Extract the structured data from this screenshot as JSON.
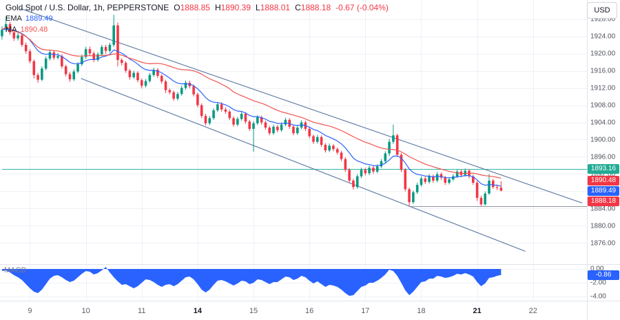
{
  "header": {
    "currency_label": "USD"
  },
  "legend": {
    "title": "Gold Spot / U.S. Dollar, 1h, PEPPERSTONE",
    "ohlc": [
      {
        "label": "O",
        "value": "1888.85"
      },
      {
        "label": "H",
        "value": "1890.39"
      },
      {
        "label": "L",
        "value": "1888.01"
      },
      {
        "label": "C",
        "value": "1888.18"
      }
    ],
    "change": "-0.67 (-0.04%)",
    "indicators": [
      {
        "label": "EMA",
        "value": "1889.49"
      },
      {
        "label": "MA",
        "value": "1890.48"
      }
    ]
  },
  "chart_data": {
    "type": "candlestick",
    "title": "Gold Spot / U.S. Dollar, 1h, PEPPERSTONE",
    "last": {
      "open": 1888.85,
      "high": 1890.39,
      "low": 1888.01,
      "close": 1888.18,
      "change": -0.67,
      "change_pct": -0.04
    },
    "right_margin_bars": 21,
    "price_axis": {
      "min": 1871.6,
      "max": 1932.4,
      "ticks": [
        1876,
        1880,
        1884,
        1888,
        1892,
        1896,
        1900,
        1904,
        1908,
        1912,
        1916,
        1920,
        1924,
        1928
      ]
    },
    "time_axis": {
      "labels": [
        {
          "text": "9",
          "bar": 7,
          "bold": false
        },
        {
          "text": "10",
          "bar": 21,
          "bold": false
        },
        {
          "text": "11",
          "bar": 35,
          "bold": false
        },
        {
          "text": "14",
          "bar": 49,
          "bold": true
        },
        {
          "text": "15",
          "bar": 63,
          "bold": false
        },
        {
          "text": "16",
          "bar": 77,
          "bold": false
        },
        {
          "text": "17",
          "bar": 91,
          "bold": false
        },
        {
          "text": "18",
          "bar": 105,
          "bold": false
        },
        {
          "text": "21",
          "bar": 119,
          "bold": true
        },
        {
          "text": "22",
          "bar": 133,
          "bold": false
        }
      ]
    },
    "candles": [
      [
        1924.0,
        1926.3,
        1923.2,
        1925.5
      ],
      [
        1925.5,
        1928.6,
        1925.0,
        1926.8
      ],
      [
        1926.8,
        1927.3,
        1924.3,
        1924.9
      ],
      [
        1924.9,
        1925.4,
        1922.9,
        1923.5
      ],
      [
        1923.5,
        1924.9,
        1923.0,
        1924.2
      ],
      [
        1924.2,
        1924.6,
        1921.5,
        1922.0
      ],
      [
        1922.0,
        1922.5,
        1919.9,
        1920.5
      ],
      [
        1920.5,
        1921.0,
        1917.7,
        1918.2
      ],
      [
        1918.2,
        1918.6,
        1914.2,
        1915.0
      ],
      [
        1915.0,
        1915.5,
        1913.2,
        1913.9
      ],
      [
        1913.9,
        1917.0,
        1913.6,
        1916.5
      ],
      [
        1916.5,
        1919.3,
        1916.1,
        1918.8
      ],
      [
        1918.8,
        1920.9,
        1918.4,
        1920.3
      ],
      [
        1920.3,
        1920.8,
        1918.5,
        1919.0
      ],
      [
        1919.0,
        1920.1,
        1918.6,
        1919.4
      ],
      [
        1919.4,
        1919.8,
        1916.5,
        1917.0
      ],
      [
        1917.0,
        1917.4,
        1914.7,
        1915.2
      ],
      [
        1915.2,
        1915.7,
        1913.4,
        1914.0
      ],
      [
        1914.0,
        1916.3,
        1913.6,
        1915.8
      ],
      [
        1915.8,
        1918.0,
        1915.4,
        1917.5
      ],
      [
        1917.5,
        1919.7,
        1917.1,
        1919.2
      ],
      [
        1919.2,
        1921.5,
        1918.8,
        1921.0
      ],
      [
        1921.0,
        1921.6,
        1919.5,
        1920.0
      ],
      [
        1920.0,
        1920.5,
        1918.0,
        1918.5
      ],
      [
        1918.5,
        1920.3,
        1918.1,
        1919.8
      ],
      [
        1919.8,
        1922.0,
        1919.4,
        1921.5
      ],
      [
        1921.5,
        1922.0,
        1919.9,
        1920.6
      ],
      [
        1920.6,
        1922.5,
        1920.2,
        1922.0
      ],
      [
        1922.0,
        1929.0,
        1921.5,
        1926.5
      ],
      [
        1926.5,
        1927.2,
        1917.0,
        1918.5
      ],
      [
        1918.5,
        1918.9,
        1917.2,
        1917.8
      ],
      [
        1917.8,
        1918.2,
        1915.5,
        1916.0
      ],
      [
        1916.0,
        1916.4,
        1913.9,
        1914.5
      ],
      [
        1914.5,
        1916.0,
        1914.1,
        1915.5
      ],
      [
        1915.5,
        1915.9,
        1913.3,
        1913.8
      ],
      [
        1913.8,
        1914.2,
        1911.9,
        1912.5
      ],
      [
        1912.5,
        1914.1,
        1912.1,
        1913.6
      ],
      [
        1913.6,
        1915.5,
        1913.2,
        1915.0
      ],
      [
        1915.0,
        1916.7,
        1914.6,
        1916.2
      ],
      [
        1916.2,
        1916.6,
        1914.3,
        1914.8
      ],
      [
        1914.8,
        1915.2,
        1913.0,
        1913.5
      ],
      [
        1913.5,
        1913.9,
        1910.8,
        1911.5
      ],
      [
        1911.5,
        1911.9,
        1910.5,
        1911.0
      ],
      [
        1911.0,
        1911.4,
        1909.0,
        1909.5
      ],
      [
        1909.5,
        1911.1,
        1909.1,
        1910.6
      ],
      [
        1910.6,
        1912.5,
        1910.2,
        1912.0
      ],
      [
        1912.0,
        1913.7,
        1911.6,
        1913.2
      ],
      [
        1913.2,
        1913.7,
        1911.9,
        1912.4
      ],
      [
        1912.4,
        1912.8,
        1910.0,
        1910.5
      ],
      [
        1910.5,
        1910.9,
        1907.5,
        1908.0
      ],
      [
        1908.0,
        1908.4,
        1905.0,
        1905.5
      ],
      [
        1905.5,
        1906.0,
        1903.3,
        1903.8
      ],
      [
        1903.8,
        1905.5,
        1903.4,
        1905.0
      ],
      [
        1905.0,
        1907.3,
        1904.6,
        1906.8
      ],
      [
        1906.8,
        1908.7,
        1906.4,
        1908.2
      ],
      [
        1908.2,
        1908.7,
        1906.5,
        1907.0
      ],
      [
        1907.0,
        1907.5,
        1906.0,
        1906.5
      ],
      [
        1906.5,
        1906.9,
        1904.5,
        1905.0
      ],
      [
        1905.0,
        1905.4,
        1903.0,
        1903.5
      ],
      [
        1903.5,
        1905.3,
        1903.1,
        1904.8
      ],
      [
        1904.8,
        1906.5,
        1904.4,
        1906.0
      ],
      [
        1906.0,
        1906.4,
        1903.7,
        1904.2
      ],
      [
        1904.2,
        1904.6,
        1902.0,
        1902.5
      ],
      [
        1902.5,
        1904.3,
        1897.2,
        1903.8
      ],
      [
        1903.8,
        1905.7,
        1903.4,
        1905.2
      ],
      [
        1905.2,
        1905.6,
        1903.5,
        1904.0
      ],
      [
        1904.0,
        1904.4,
        1902.3,
        1902.8
      ],
      [
        1902.8,
        1903.2,
        1901.0,
        1901.5
      ],
      [
        1901.5,
        1903.5,
        1901.1,
        1903.0
      ],
      [
        1903.0,
        1903.4,
        1901.7,
        1902.2
      ],
      [
        1902.2,
        1904.0,
        1901.8,
        1903.5
      ],
      [
        1903.5,
        1905.1,
        1903.1,
        1904.6
      ],
      [
        1904.6,
        1905.0,
        1902.5,
        1903.0
      ],
      [
        1903.0,
        1903.4,
        1901.0,
        1901.5
      ],
      [
        1901.5,
        1903.3,
        1901.1,
        1902.8
      ],
      [
        1902.8,
        1904.5,
        1902.4,
        1904.0
      ],
      [
        1904.0,
        1904.4,
        1902.0,
        1902.5
      ],
      [
        1902.5,
        1902.9,
        1900.3,
        1900.8
      ],
      [
        1900.8,
        1901.2,
        1899.0,
        1899.5
      ],
      [
        1899.5,
        1901.1,
        1899.1,
        1900.6
      ],
      [
        1900.6,
        1901.0,
        1898.3,
        1898.8
      ],
      [
        1898.8,
        1899.2,
        1897.0,
        1897.5
      ],
      [
        1897.5,
        1899.1,
        1897.1,
        1898.6
      ],
      [
        1898.6,
        1899.0,
        1897.3,
        1897.8
      ],
      [
        1897.8,
        1898.2,
        1896.5,
        1897.0
      ],
      [
        1897.0,
        1897.4,
        1895.0,
        1895.5
      ],
      [
        1895.5,
        1895.9,
        1892.5,
        1893.0
      ],
      [
        1893.0,
        1893.4,
        1889.9,
        1890.5
      ],
      [
        1890.5,
        1890.9,
        1888.4,
        1889.0
      ],
      [
        1889.0,
        1892.0,
        1888.6,
        1891.5
      ],
      [
        1891.5,
        1893.5,
        1891.1,
        1893.0
      ],
      [
        1893.0,
        1893.5,
        1891.7,
        1892.2
      ],
      [
        1892.2,
        1894.0,
        1891.8,
        1893.5
      ],
      [
        1893.5,
        1893.9,
        1892.1,
        1892.6
      ],
      [
        1892.6,
        1894.3,
        1892.2,
        1893.8
      ],
      [
        1893.8,
        1895.5,
        1893.4,
        1895.0
      ],
      [
        1895.0,
        1897.3,
        1894.6,
        1896.8
      ],
      [
        1896.8,
        1900.2,
        1896.2,
        1899.5
      ],
      [
        1899.5,
        1903.5,
        1899.0,
        1901.0
      ],
      [
        1901.0,
        1901.4,
        1896.0,
        1896.5
      ],
      [
        1896.5,
        1896.9,
        1892.5,
        1893.0
      ],
      [
        1893.0,
        1893.4,
        1888.0,
        1888.5
      ],
      [
        1888.5,
        1888.9,
        1884.6,
        1885.5
      ],
      [
        1885.5,
        1888.2,
        1885.1,
        1887.8
      ],
      [
        1887.8,
        1890.0,
        1887.4,
        1889.5
      ],
      [
        1889.5,
        1891.5,
        1889.1,
        1891.0
      ],
      [
        1891.0,
        1891.4,
        1889.7,
        1890.2
      ],
      [
        1890.2,
        1892.0,
        1889.8,
        1891.5
      ],
      [
        1891.5,
        1891.9,
        1890.0,
        1890.5
      ],
      [
        1890.5,
        1892.5,
        1890.1,
        1892.0
      ],
      [
        1892.0,
        1892.4,
        1890.7,
        1891.2
      ],
      [
        1891.2,
        1891.6,
        1889.5,
        1890.0
      ],
      [
        1890.0,
        1891.3,
        1889.6,
        1890.8
      ],
      [
        1890.8,
        1892.0,
        1890.4,
        1891.5
      ],
      [
        1891.5,
        1893.1,
        1891.1,
        1892.6
      ],
      [
        1892.6,
        1893.0,
        1891.3,
        1891.8
      ],
      [
        1891.8,
        1893.3,
        1891.4,
        1892.8
      ],
      [
        1892.8,
        1893.2,
        1891.0,
        1891.5
      ],
      [
        1891.5,
        1891.9,
        1889.5,
        1890.0
      ],
      [
        1890.0,
        1890.4,
        1885.8,
        1886.5
      ],
      [
        1886.5,
        1887.0,
        1884.6,
        1885.0
      ],
      [
        1885.0,
        1888.0,
        1884.7,
        1887.5
      ],
      [
        1887.5,
        1892.0,
        1887.2,
        1890.5
      ],
      [
        1890.5,
        1890.9,
        1888.6,
        1889.0
      ],
      [
        1889.0,
        1889.6,
        1888.3,
        1888.9
      ],
      [
        1888.85,
        1890.39,
        1888.01,
        1888.18
      ]
    ],
    "levels": [
      {
        "price": 1893.16,
        "from_bar": 0,
        "color": "#2fb3a6"
      },
      {
        "price": 1884.6,
        "from_bar": 102,
        "color": "#8e96a3"
      }
    ],
    "channel": {
      "color": "#51719c",
      "upper": {
        "x1": 0.035,
        "p1": 1930.4,
        "x2": 0.992,
        "p2": 1885.3
      },
      "lower": {
        "x1": 0.138,
        "p1": 1914.2,
        "x2": 0.895,
        "p2": 1874.1
      }
    },
    "macd": {
      "label": "MACD",
      "min": -4.6,
      "max": 0.6,
      "ticks": [
        0,
        -2,
        -4
      ],
      "current": -0.86,
      "values": [
        -0.3,
        -0.2,
        -0.5,
        -0.9,
        -1.2,
        -1.6,
        -2.2,
        -2.8,
        -3.3,
        -3.5,
        -3.0,
        -2.2,
        -1.4,
        -1.0,
        -0.9,
        -1.2,
        -1.6,
        -1.9,
        -1.7,
        -1.2,
        -0.7,
        -0.3,
        -0.4,
        -0.8,
        -0.6,
        -0.2,
        0.3,
        -0.5,
        -1.2,
        -1.8,
        -2.3,
        -2.2,
        -2.5,
        -2.8,
        -2.5,
        -2.0,
        -1.5,
        -1.6,
        -1.9,
        -2.3,
        -2.6,
        -2.3,
        -2.2,
        -2.5,
        -2.2,
        -1.7,
        -1.2,
        -1.1,
        -1.5,
        -2.2,
        -3.0,
        -3.4,
        -3.0,
        -2.3,
        -1.7,
        -1.6,
        -1.8,
        -2.1,
        -2.4,
        -2.1,
        -1.7,
        -1.8,
        -2.2,
        -2.0,
        -1.5,
        -1.6,
        -1.9,
        -2.2,
        -1.9,
        -1.9,
        -1.5,
        -1.1,
        -1.2,
        -1.6,
        -1.4,
        -1.0,
        -1.2,
        -1.7,
        -2.1,
        -1.8,
        -2.2,
        -2.6,
        -2.3,
        -2.4,
        -2.6,
        -3.0,
        -3.5,
        -3.9,
        -3.8,
        -3.2,
        -2.6,
        -2.4,
        -2.0,
        -2.0,
        -1.7,
        -1.3,
        -0.8,
        -0.1,
        -0.3,
        -1.0,
        -2.0,
        -3.1,
        -3.8,
        -3.3,
        -2.6,
        -1.9,
        -1.8,
        -1.4,
        -1.4,
        -1.0,
        -1.1,
        -1.3,
        -1.2,
        -1.0,
        -0.7,
        -0.8,
        -0.6,
        -0.8,
        -1.1,
        -1.9,
        -2.5,
        -2.1,
        -1.3,
        -1.2,
        -1.0,
        -0.86
      ]
    },
    "badges": {
      "level": {
        "text": "1893.16",
        "price": 1893.16,
        "color": "#22ab94"
      },
      "ma": {
        "text": "1890.48",
        "price": 1890.48,
        "color": "#f23645"
      },
      "ema": {
        "text": "1889.49",
        "price": 1889.49,
        "color": "#2962ff"
      },
      "last": {
        "text": "1888.18",
        "price": 1888.18,
        "color": "#f23645"
      },
      "macd": {
        "text": "-0.86",
        "value": -0.86,
        "color": "#2962ff"
      }
    },
    "colors": {
      "up": "#089981",
      "down": "#f23645",
      "ema_line": "#2962ff",
      "ma_line": "#ef5350",
      "macd_area": "#2962ff",
      "grid": "#eef1f8",
      "separator": "#e0e3eb"
    }
  }
}
